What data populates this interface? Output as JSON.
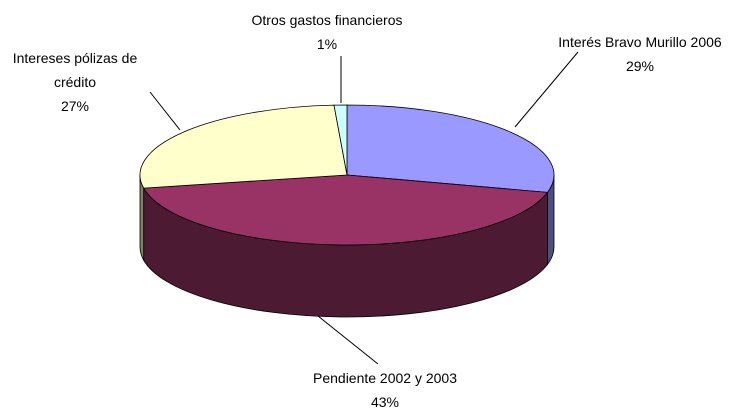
{
  "chart_data": {
    "type": "pie",
    "categories": [
      "Interés Bravo Murillo 2006",
      "Pendiente 2002 y 2003",
      "Intereses pólizas de crédito",
      "Otros gastos financieros"
    ],
    "values": [
      29,
      43,
      27,
      1
    ],
    "value_labels": [
      "29%",
      "43%",
      "27%",
      "1%"
    ],
    "colors": [
      "#9999ff",
      "#993366",
      "#ffffcc",
      "#ccffff"
    ]
  }
}
